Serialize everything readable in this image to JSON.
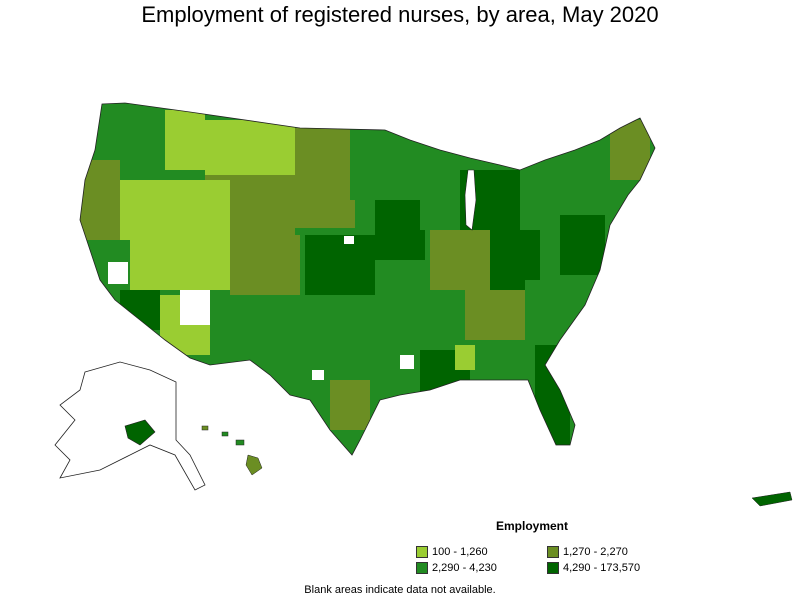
{
  "title": "Employment of registered nurses, by area, May 2020",
  "legend": {
    "title": "Employment",
    "items": [
      {
        "label": "100 - 1,260",
        "color": "#9acd32"
      },
      {
        "label": "1,270 - 2,270",
        "color": "#6b8e23"
      },
      {
        "label": "2,290 - 4,230",
        "color": "#228b22"
      },
      {
        "label": "4,290 - 173,570",
        "color": "#006400"
      }
    ]
  },
  "note": "Blank areas indicate data not available."
}
